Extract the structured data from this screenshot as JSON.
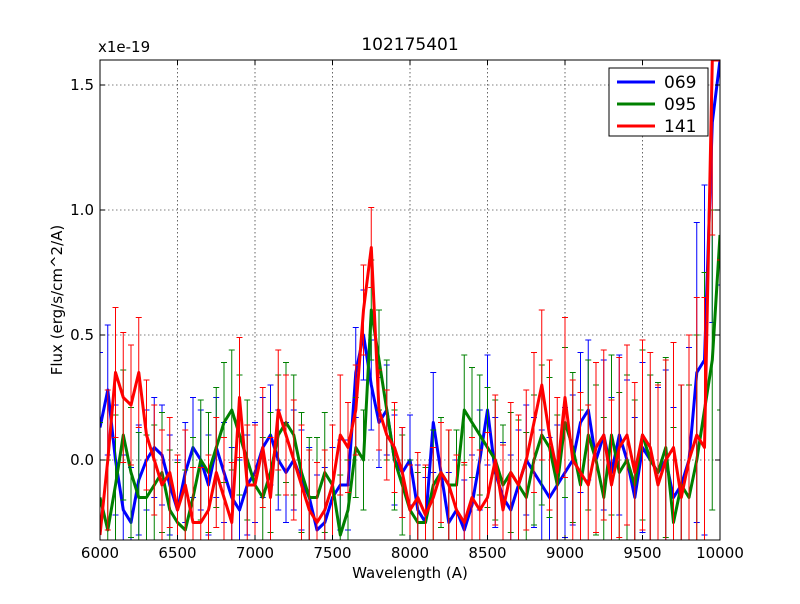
{
  "chart_data": {
    "type": "line",
    "title": "102175401",
    "xlabel": "Wavelength (A)",
    "ylabel": "Flux (erg/s/cm^2/A)",
    "y_multiplier_label": "x1e-19",
    "xlim": [
      6000,
      10000
    ],
    "ylim": [
      -0.32,
      1.6
    ],
    "x_ticks": [
      6000,
      6500,
      7000,
      7500,
      8000,
      8500,
      9000,
      9500,
      10000
    ],
    "x_tick_labels": [
      "6000",
      "6500",
      "7000",
      "7500",
      "8000",
      "8500",
      "9000",
      "9500",
      "10000"
    ],
    "y_ticks": [
      0.0,
      0.5,
      1.0,
      1.5
    ],
    "y_tick_labels": [
      "0.0",
      "0.5",
      "1.0",
      "1.5"
    ],
    "grid": true,
    "legend_position": "top-right",
    "x": [
      6000,
      6050,
      6100,
      6150,
      6200,
      6250,
      6300,
      6350,
      6400,
      6450,
      6500,
      6550,
      6600,
      6650,
      6700,
      6750,
      6800,
      6850,
      6900,
      6950,
      7000,
      7050,
      7100,
      7150,
      7200,
      7250,
      7300,
      7350,
      7400,
      7450,
      7500,
      7550,
      7600,
      7650,
      7700,
      7750,
      7800,
      7850,
      7900,
      7950,
      8000,
      8050,
      8100,
      8150,
      8200,
      8250,
      8300,
      8350,
      8400,
      8450,
      8500,
      8550,
      8600,
      8650,
      8700,
      8750,
      8800,
      8850,
      8900,
      8950,
      9000,
      9050,
      9100,
      9150,
      9200,
      9250,
      9300,
      9350,
      9400,
      9450,
      9500,
      9550,
      9600,
      9650,
      9700,
      9750,
      9800,
      9850,
      9900,
      9950,
      10000
    ],
    "series": [
      {
        "name": "069",
        "color": "#0000ff",
        "values": [
          0.13,
          0.28,
          0.0,
          -0.2,
          -0.25,
          -0.08,
          0.0,
          0.05,
          0.02,
          -0.1,
          -0.2,
          -0.05,
          0.05,
          0.0,
          -0.1,
          0.05,
          -0.05,
          -0.15,
          -0.2,
          -0.1,
          -0.05,
          0.05,
          0.1,
          0.0,
          -0.05,
          0.0,
          -0.08,
          -0.15,
          -0.28,
          -0.25,
          -0.15,
          -0.1,
          -0.1,
          0.35,
          0.5,
          0.3,
          0.15,
          0.2,
          0.0,
          -0.05,
          0.0,
          -0.2,
          -0.25,
          0.15,
          -0.05,
          -0.25,
          -0.2,
          -0.28,
          -0.18,
          0.0,
          0.2,
          -0.05,
          -0.15,
          -0.2,
          -0.1,
          0.0,
          -0.05,
          -0.1,
          -0.15,
          -0.1,
          -0.05,
          0.0,
          0.15,
          0.2,
          0.0,
          0.1,
          -0.05,
          0.1,
          0.0,
          -0.15,
          0.05,
          0.0,
          -0.05,
          0.0,
          -0.15,
          -0.1,
          0.0,
          0.35,
          0.4,
          1.35,
          1.6
        ],
        "errors": [
          0.3,
          0.26,
          0.22,
          0.22,
          0.22,
          0.22,
          0.2,
          0.2,
          0.2,
          0.2,
          0.2,
          0.2,
          0.2,
          0.2,
          0.2,
          0.2,
          0.2,
          0.2,
          0.2,
          0.2,
          0.2,
          0.2,
          0.2,
          0.2,
          0.2,
          0.2,
          0.2,
          0.2,
          0.22,
          0.22,
          0.2,
          0.18,
          0.18,
          0.18,
          0.18,
          0.18,
          0.18,
          0.18,
          0.18,
          0.18,
          0.18,
          0.18,
          0.18,
          0.2,
          0.2,
          0.2,
          0.2,
          0.2,
          0.2,
          0.2,
          0.22,
          0.22,
          0.22,
          0.22,
          0.22,
          0.22,
          0.22,
          0.22,
          0.24,
          0.24,
          0.26,
          0.26,
          0.28,
          0.28,
          0.3,
          0.3,
          0.3,
          0.32,
          0.32,
          0.32,
          0.34,
          0.34,
          0.34,
          0.36,
          0.36,
          0.4,
          0.45,
          0.6,
          0.7,
          0.8,
          0.9
        ]
      },
      {
        "name": "095",
        "color": "#008000",
        "values": [
          -0.15,
          -0.28,
          -0.1,
          0.1,
          -0.05,
          -0.15,
          -0.15,
          -0.1,
          -0.05,
          -0.2,
          -0.25,
          -0.28,
          -0.15,
          0.0,
          -0.05,
          0.05,
          0.15,
          0.2,
          0.1,
          0.0,
          -0.1,
          -0.15,
          -0.05,
          0.1,
          0.15,
          0.1,
          -0.05,
          -0.15,
          -0.15,
          -0.05,
          -0.1,
          -0.3,
          -0.2,
          0.05,
          0.0,
          0.6,
          0.4,
          0.2,
          0.0,
          -0.1,
          -0.2,
          -0.25,
          -0.25,
          -0.1,
          -0.05,
          -0.1,
          -0.1,
          0.2,
          0.15,
          0.1,
          0.05,
          0.0,
          -0.1,
          -0.05,
          -0.1,
          -0.15,
          0.0,
          0.1,
          0.05,
          -0.1,
          0.15,
          0.05,
          -0.1,
          0.1,
          0.0,
          -0.15,
          0.1,
          -0.05,
          0.0,
          -0.1,
          0.1,
          0.0,
          -0.05,
          0.05,
          -0.25,
          -0.1,
          -0.15,
          0.0,
          0.2,
          0.4,
          0.9
        ],
        "errors": [
          0.3,
          0.28,
          0.28,
          0.26,
          0.26,
          0.26,
          0.25,
          0.24,
          0.24,
          0.24,
          0.24,
          0.24,
          0.24,
          0.24,
          0.24,
          0.24,
          0.24,
          0.24,
          0.24,
          0.24,
          0.24,
          0.24,
          0.24,
          0.24,
          0.24,
          0.24,
          0.24,
          0.24,
          0.24,
          0.24,
          0.24,
          0.24,
          0.2,
          0.2,
          0.2,
          0.2,
          0.2,
          0.2,
          0.2,
          0.2,
          0.2,
          0.2,
          0.22,
          0.22,
          0.22,
          0.22,
          0.22,
          0.22,
          0.22,
          0.24,
          0.24,
          0.24,
          0.24,
          0.24,
          0.26,
          0.26,
          0.26,
          0.28,
          0.28,
          0.28,
          0.3,
          0.3,
          0.3,
          0.3,
          0.3,
          0.32,
          0.32,
          0.32,
          0.34,
          0.34,
          0.34,
          0.34,
          0.36,
          0.36,
          0.38,
          0.4,
          0.45,
          0.5,
          0.55,
          0.6,
          0.7
        ]
      },
      {
        "name": "141",
        "color": "#ff0000",
        "values": [
          -0.3,
          0.0,
          0.35,
          0.25,
          0.22,
          0.35,
          0.1,
          0.0,
          -0.1,
          -0.05,
          -0.2,
          -0.1,
          -0.25,
          -0.25,
          -0.2,
          -0.05,
          -0.15,
          -0.25,
          0.25,
          -0.1,
          -0.1,
          0.05,
          -0.15,
          0.2,
          0.1,
          0.0,
          -0.1,
          -0.2,
          -0.25,
          -0.2,
          -0.1,
          0.1,
          0.05,
          0.2,
          0.6,
          0.85,
          0.2,
          0.1,
          0.05,
          -0.05,
          -0.2,
          -0.15,
          -0.22,
          -0.15,
          -0.05,
          -0.1,
          -0.2,
          -0.25,
          -0.15,
          -0.2,
          -0.15,
          0.0,
          -0.2,
          -0.05,
          -0.1,
          0.0,
          0.15,
          0.3,
          0.1,
          -0.05,
          0.25,
          0.0,
          -0.05,
          -0.1,
          0.05,
          0.1,
          -0.1,
          0.05,
          0.1,
          -0.05,
          0.1,
          0.05,
          -0.1,
          0.0,
          0.05,
          -0.15,
          0.0,
          0.1,
          0.05,
          1.6,
          1.6
        ],
        "errors": [
          0.3,
          0.28,
          0.26,
          0.26,
          0.24,
          0.22,
          0.22,
          0.22,
          0.22,
          0.22,
          0.22,
          0.22,
          0.22,
          0.22,
          0.22,
          0.22,
          0.24,
          0.24,
          0.24,
          0.24,
          0.24,
          0.24,
          0.24,
          0.24,
          0.24,
          0.24,
          0.24,
          0.24,
          0.24,
          0.24,
          0.24,
          0.24,
          0.18,
          0.18,
          0.18,
          0.16,
          0.16,
          0.18,
          0.18,
          0.18,
          0.18,
          0.18,
          0.2,
          0.2,
          0.2,
          0.22,
          0.22,
          0.24,
          0.24,
          0.24,
          0.26,
          0.26,
          0.26,
          0.28,
          0.28,
          0.28,
          0.28,
          0.3,
          0.3,
          0.3,
          0.32,
          0.32,
          0.32,
          0.32,
          0.34,
          0.34,
          0.34,
          0.36,
          0.36,
          0.36,
          0.38,
          0.38,
          0.4,
          0.4,
          0.42,
          0.45,
          0.5,
          0.55,
          0.6,
          0.7,
          0.8
        ]
      }
    ]
  }
}
